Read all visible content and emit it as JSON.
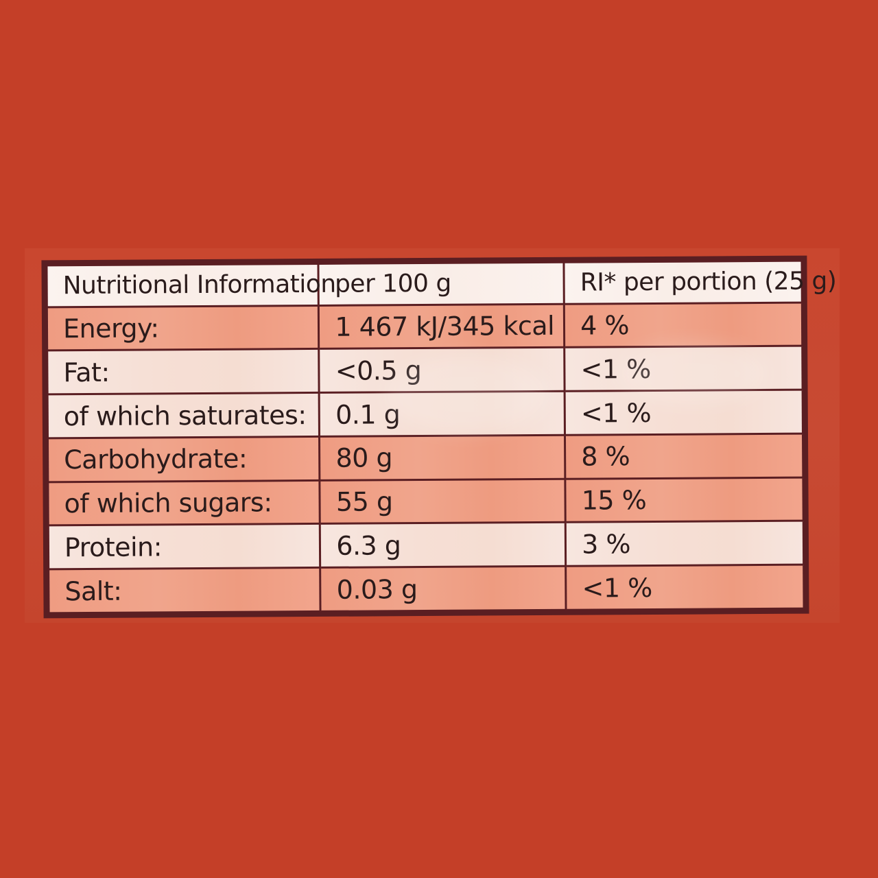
{
  "background_color": "#c43f28",
  "table": {
    "header": [
      "Nutritional Information",
      "per 100 g",
      "RI* per portion (25 g)"
    ],
    "rows": [
      [
        "Energy:",
        "1 467 kJ/345 kcal",
        "4 %"
      ],
      [
        "Fat:",
        "<0.5 g",
        "<1 %"
      ],
      [
        "of which saturates:",
        "0.1 g",
        "<1 %"
      ],
      [
        "Carbohydrate:",
        "80 g",
        "8 %"
      ],
      [
        "of which sugars:",
        "55 g",
        "15 %"
      ],
      [
        "Protein:",
        "6.3 g",
        "3 %"
      ],
      [
        "Salt:",
        "0.03 g",
        "<1 %"
      ]
    ]
  }
}
